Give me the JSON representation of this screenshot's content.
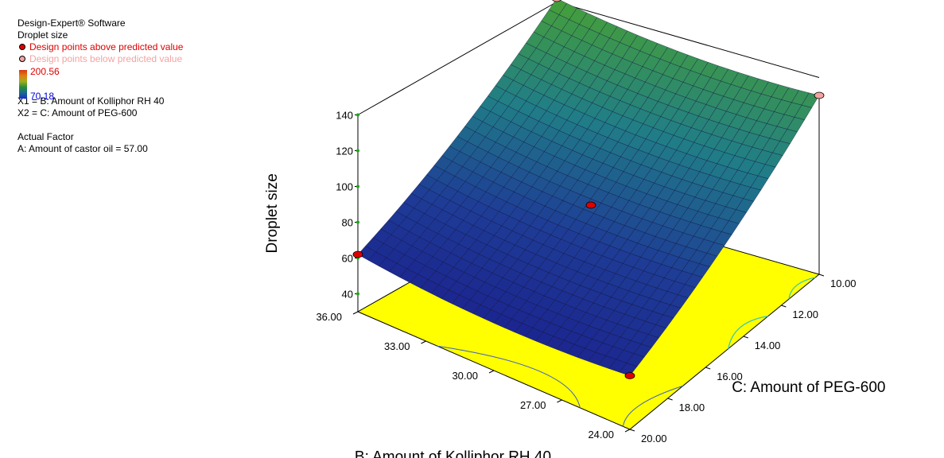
{
  "header": {
    "software": "Design-Expert® Software",
    "response": "Droplet size",
    "above_label": "Design points above predicted value",
    "below_label": "Design points below predicted value",
    "above_color": "#e00000",
    "below_color": "#f4a3a3",
    "scale_max": "200.56",
    "scale_min": "70.18",
    "x1_text": "X1 = B: Amount of Kolliphor RH 40",
    "x2_text": "X2 = C: Amount of PEG-600",
    "actual_factor_title": "Actual Factor",
    "actual_factor_text": "A: Amount of castor oil = 57.00"
  },
  "chart_data": {
    "type": "surface",
    "title": "",
    "zlabel": "Droplet size",
    "xlabel": "B: Amount of Kolliphor RH 40",
    "ylabel": "C: Amount of PEG-600",
    "x_ticks": [
      "24.00",
      "27.00",
      "30.00",
      "33.00",
      "36.00"
    ],
    "y_ticks": [
      "10.00",
      "12.00",
      "14.00",
      "16.00",
      "18.00",
      "20.00"
    ],
    "z_ticks": [
      "40",
      "60",
      "80",
      "100",
      "120",
      "140"
    ],
    "xlim": [
      24,
      36
    ],
    "ylim": [
      10,
      20
    ],
    "zlim": [
      30,
      140
    ],
    "corner_values": [
      {
        "b": 24,
        "c": 20,
        "droplet_size": 60
      },
      {
        "b": 36,
        "c": 20,
        "droplet_size": 62
      },
      {
        "b": 36,
        "c": 10,
        "droplet_size": 142
      },
      {
        "b": 24,
        "c": 10,
        "droplet_size": 130
      }
    ],
    "design_points": [
      {
        "b": 24,
        "c": 20,
        "droplet_size": 60,
        "type": "above"
      },
      {
        "b": 36,
        "c": 20,
        "droplet_size": 62,
        "type": "above"
      },
      {
        "b": 30,
        "c": 15,
        "droplet_size": 85,
        "type": "above"
      },
      {
        "b": 36,
        "c": 10,
        "droplet_size": 142,
        "type": "below"
      },
      {
        "b": 24,
        "c": 10,
        "droplet_size": 130,
        "type": "below"
      }
    ],
    "floor_color": "#ffff00",
    "grid": false,
    "legend_position": "top-left"
  }
}
